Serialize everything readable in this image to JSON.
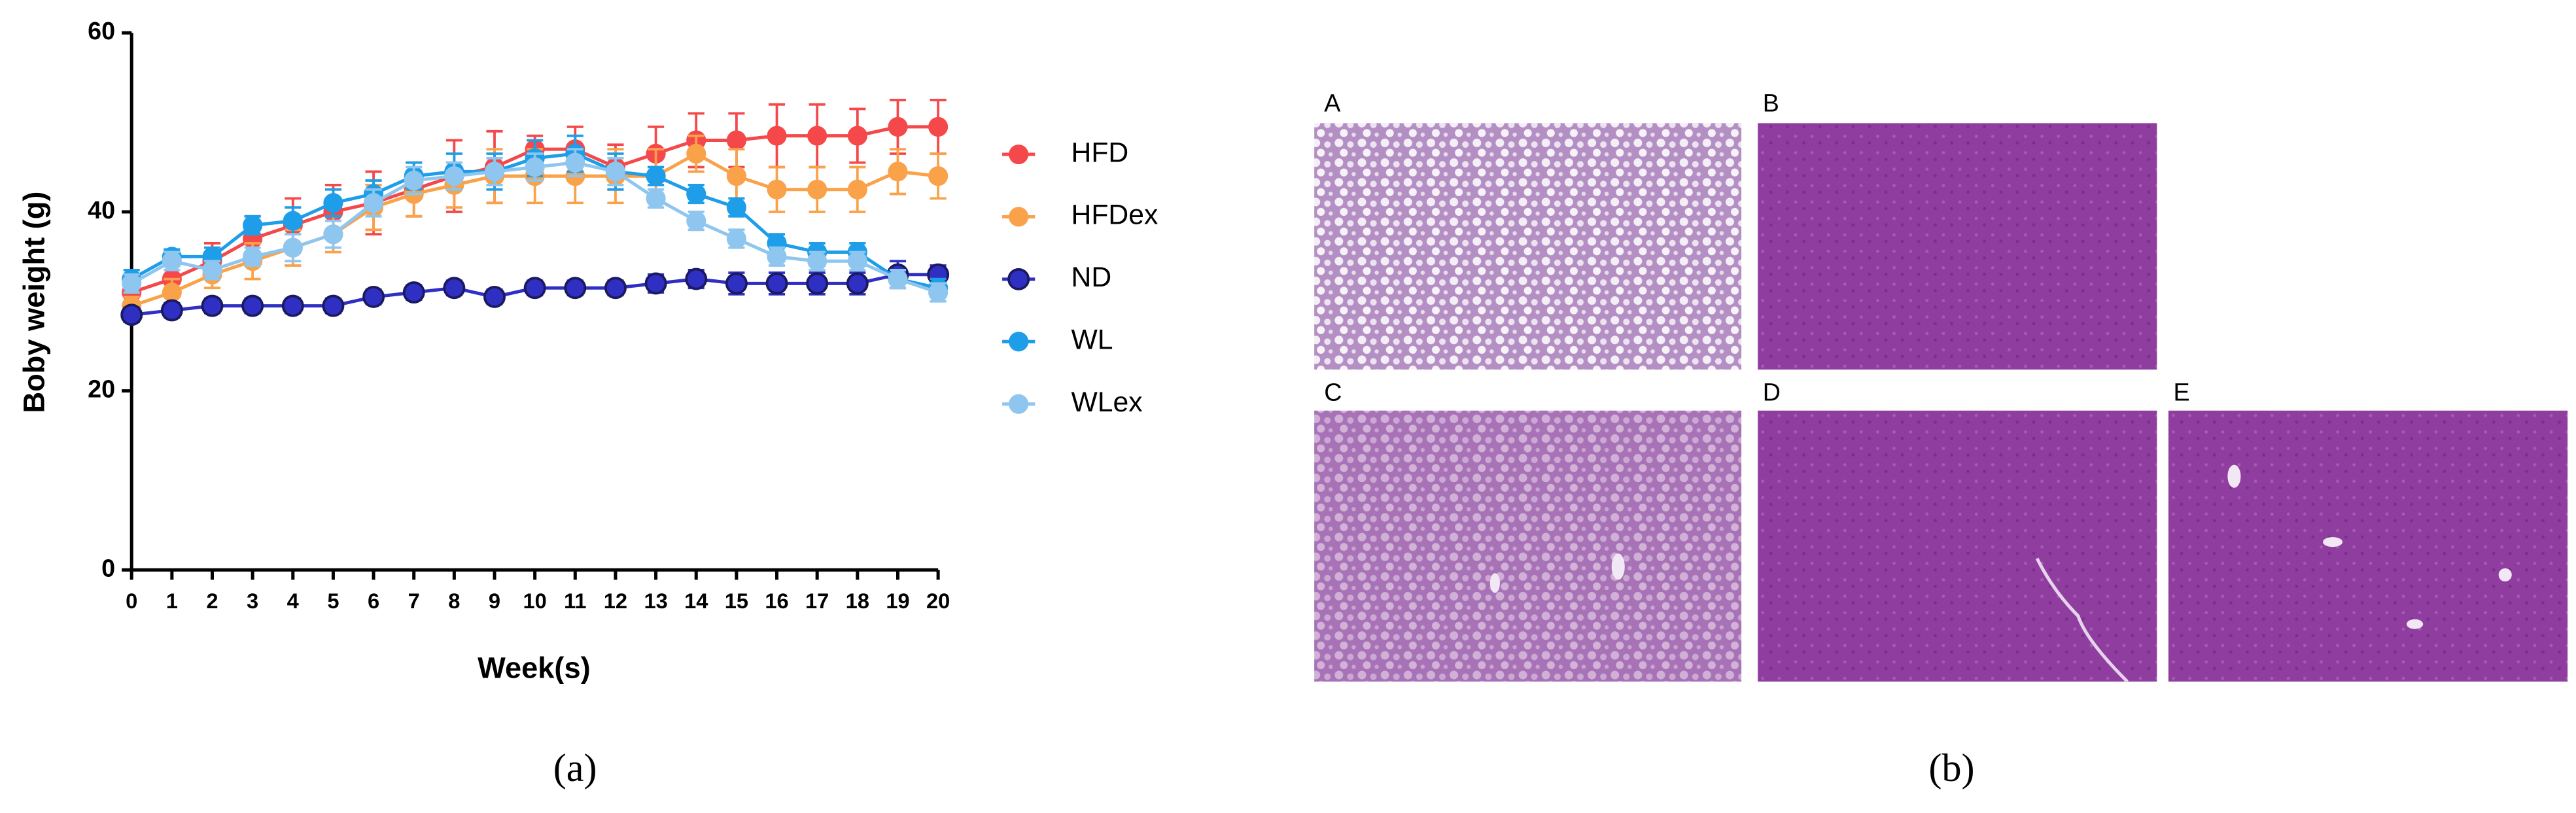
{
  "chart_data": {
    "type": "line",
    "xlabel": "Week(s)",
    "ylabel": "Boby weight  (g)",
    "x": [
      0,
      1,
      2,
      3,
      4,
      5,
      6,
      7,
      8,
      9,
      10,
      11,
      12,
      13,
      14,
      15,
      16,
      17,
      18,
      19,
      20
    ],
    "xlim": [
      0,
      20
    ],
    "xticks": [
      0,
      1,
      2,
      3,
      4,
      5,
      6,
      7,
      8,
      9,
      10,
      11,
      12,
      13,
      14,
      15,
      16,
      17,
      18,
      19,
      20
    ],
    "ylim": [
      0,
      60
    ],
    "yticks": [
      0,
      20,
      40,
      60
    ],
    "legend": "right",
    "series": [
      {
        "name": "HFD",
        "color": "#f4484a",
        "values": [
          31,
          32.5,
          34.5,
          37,
          38.5,
          40,
          41,
          42.5,
          44,
          45,
          47,
          47,
          45,
          46.5,
          48,
          48,
          48.5,
          48.5,
          48.5,
          49.5,
          49.5
        ],
        "errors": [
          1.5,
          1.5,
          2,
          2.5,
          3,
          3,
          3.5,
          3,
          4,
          4,
          1.5,
          2.5,
          2.5,
          3,
          3,
          3,
          3.5,
          3.5,
          3,
          3,
          3
        ]
      },
      {
        "name": "HFDex",
        "color": "#f9a24a",
        "values": [
          29.5,
          31,
          33,
          34.5,
          36,
          37.5,
          40.5,
          42,
          43,
          44,
          44,
          44,
          44,
          44,
          46.5,
          44,
          42.5,
          42.5,
          42.5,
          44.5,
          44
        ],
        "errors": [
          1,
          1.5,
          1.5,
          2,
          2,
          2,
          2.5,
          2.5,
          2.5,
          3,
          3,
          3,
          3,
          3,
          2,
          3,
          2.5,
          2.5,
          2.5,
          2.5,
          2.5
        ]
      },
      {
        "name": "ND",
        "color": "#2f2fc4",
        "values": [
          28.5,
          29,
          29.5,
          29.5,
          29.5,
          29.5,
          30.5,
          31,
          31.5,
          30.5,
          31.5,
          31.5,
          31.5,
          32,
          32.5,
          32,
          32,
          32,
          32,
          33,
          33
        ],
        "errors": [
          0.8,
          0.8,
          0.8,
          0.8,
          0.8,
          0.8,
          0.8,
          0.8,
          0.8,
          0.8,
          0.8,
          0.8,
          0.8,
          1,
          1,
          1.2,
          1.2,
          1.2,
          1.2,
          1.5,
          1
        ]
      },
      {
        "name": "WL",
        "color": "#1e9de8",
        "values": [
          32.5,
          35,
          35,
          38.5,
          39,
          41,
          42,
          44,
          44.5,
          44.5,
          46,
          46.5,
          44.5,
          44,
          42,
          40.5,
          36.5,
          35.5,
          35.5,
          32.5,
          31.5
        ],
        "errors": [
          1,
          0.8,
          1,
          1,
          1.5,
          1.5,
          1.5,
          1.5,
          2,
          2,
          2,
          2,
          2,
          1,
          1,
          1,
          1,
          1,
          1,
          1,
          1
        ]
      },
      {
        "name": "WLex",
        "color": "#8ec6ef",
        "values": [
          32,
          34.5,
          33.5,
          35,
          36,
          37.5,
          41,
          43.5,
          44,
          44.5,
          45,
          45.5,
          44.5,
          41.5,
          39,
          37,
          35,
          34.5,
          34.5,
          32.5,
          31
        ],
        "errors": [
          1,
          1,
          1,
          1,
          1.5,
          1.5,
          1.5,
          1.5,
          1.5,
          1.5,
          1.5,
          1.5,
          1.5,
          1,
          1,
          1,
          1,
          1,
          1,
          1,
          1
        ]
      }
    ]
  },
  "histology": {
    "labels": [
      "A",
      "B",
      "C",
      "D",
      "E"
    ]
  },
  "captions": [
    "(a)",
    "(b)"
  ]
}
